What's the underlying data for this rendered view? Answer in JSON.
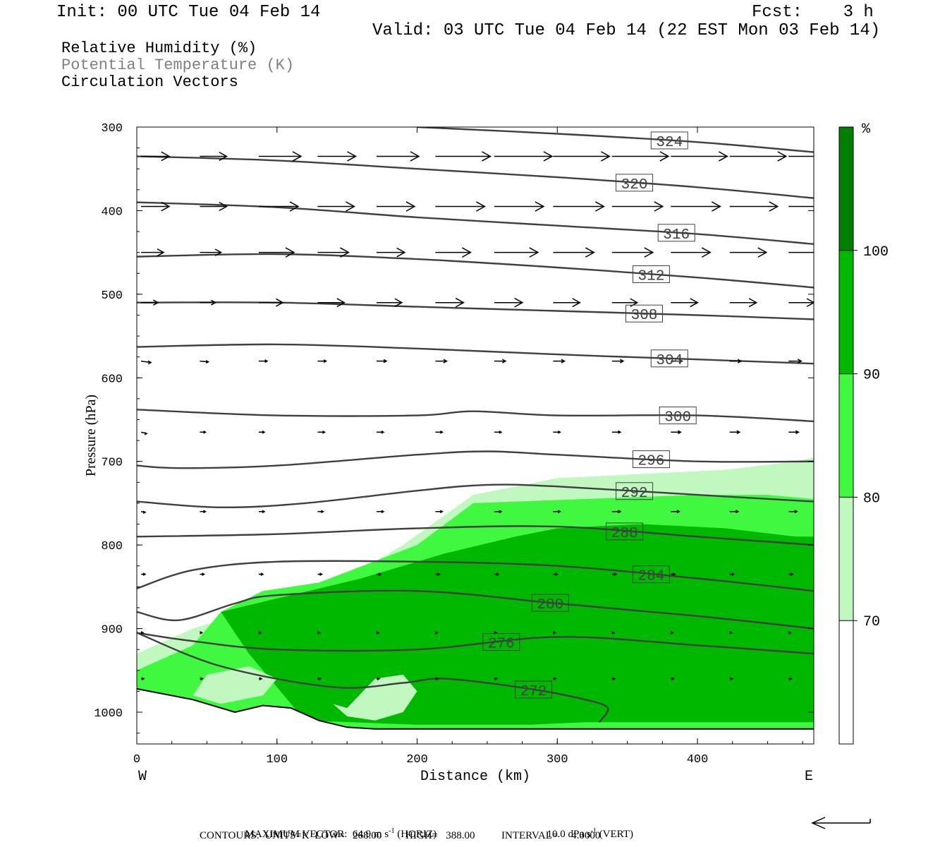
{
  "header": {
    "init": "Init: 00 UTC Tue 04 Feb 14",
    "fcst": "Fcst:    3 h",
    "valid": "Valid: 03 UTC Tue 04 Feb 14 (22 EST Mon 03 Feb 14)",
    "line1": "Relative Humidity (%)",
    "line2": "Potential Temperature (K)",
    "line3": "Circulation Vectors",
    "line2_color": "#808080"
  },
  "chart_data": {
    "type": "heatmap",
    "title": "",
    "xlabel": "Distance (km)",
    "ylabel": "Pressure (hPa)",
    "xlim": [
      0,
      483
    ],
    "ylim": [
      1038,
      300
    ],
    "x_ticks": [
      "0",
      "100",
      "200",
      "300",
      "400"
    ],
    "y_ticks": [
      "300",
      "400",
      "500",
      "600",
      "700",
      "800",
      "900",
      "1000"
    ],
    "x_ends": {
      "left": "W",
      "right": "E"
    },
    "colorbar": {
      "unit": "%",
      "levels": [
        "70",
        "80",
        "90",
        "100"
      ],
      "colors": [
        "#ffffff",
        "#c0f8c0",
        "#40f840",
        "#00b800",
        "#008000"
      ]
    },
    "rh_regions": [
      {
        "min": 70,
        "color": "#c0f8c0",
        "x": [
          0,
          40,
          80,
          110,
          150,
          190,
          240,
          300,
          360,
          420,
          470,
          483,
          483,
          0
        ],
        "p": [
          930,
          900,
          880,
          865,
          840,
          800,
          740,
          720,
          715,
          710,
          700,
          695,
          1025,
          1025
        ]
      },
      {
        "min": 80,
        "color": "#40f840",
        "x": [
          0,
          40,
          60,
          90,
          130,
          200,
          240,
          320,
          400,
          450,
          483,
          483,
          0
        ],
        "p": [
          950,
          920,
          880,
          855,
          845,
          800,
          750,
          745,
          740,
          740,
          745,
          1025,
          1025
        ]
      },
      {
        "min": 90,
        "color": "#00b800",
        "x": [
          60,
          110,
          160,
          220,
          270,
          300,
          360,
          420,
          470,
          483,
          483,
          440,
          380,
          320,
          280,
          250,
          200,
          120,
          80
        ],
        "p": [
          880,
          860,
          840,
          810,
          790,
          780,
          775,
          780,
          790,
          790,
          1012,
          1012,
          1012,
          1012,
          1015,
          1015,
          1015,
          1010,
          930
        ]
      }
    ],
    "rh_holes": [
      {
        "min": 70,
        "x": [
          150,
          170,
          190,
          200,
          190,
          170,
          150,
          140
        ],
        "p": [
          995,
          960,
          955,
          975,
          1000,
          1010,
          1005,
          990
        ]
      },
      {
        "min": 70,
        "x": [
          50,
          80,
          100,
          90,
          60,
          40
        ],
        "p": [
          955,
          945,
          960,
          980,
          990,
          980
        ]
      }
    ],
    "theta_contours": [
      {
        "value": "324",
        "label_x": 380,
        "x": [
          200,
          300,
          400,
          483
        ],
        "p": [
          300,
          308,
          318,
          330
        ]
      },
      {
        "value": "320",
        "label_x": 355,
        "x": [
          0,
          100,
          200,
          300,
          400,
          483
        ],
        "p": [
          335,
          340,
          350,
          360,
          372,
          385
        ]
      },
      {
        "value": "316",
        "label_x": 385,
        "x": [
          0,
          100,
          200,
          300,
          400,
          483
        ],
        "p": [
          390,
          396,
          408,
          418,
          428,
          440
        ]
      },
      {
        "value": "312",
        "label_x": 367,
        "x": [
          0,
          100,
          200,
          300,
          400,
          483
        ],
        "p": [
          455,
          452,
          458,
          468,
          480,
          492
        ]
      },
      {
        "value": "308",
        "label_x": 362,
        "x": [
          0,
          100,
          200,
          300,
          400,
          483
        ],
        "p": [
          510,
          510,
          515,
          520,
          525,
          530
        ]
      },
      {
        "value": "304",
        "label_x": 380,
        "x": [
          0,
          100,
          200,
          300,
          400,
          483
        ],
        "p": [
          563,
          560,
          565,
          572,
          578,
          583
        ]
      },
      {
        "value": "300",
        "label_x": 386,
        "x": [
          0,
          100,
          200,
          240,
          300,
          400,
          483
        ],
        "p": [
          638,
          645,
          645,
          640,
          645,
          645,
          652
        ]
      },
      {
        "value": "296",
        "label_x": 367,
        "x": [
          0,
          30,
          100,
          200,
          250,
          300,
          400,
          483
        ],
        "p": [
          705,
          708,
          705,
          692,
          688,
          692,
          700,
          700
        ]
      },
      {
        "value": "292",
        "label_x": 355,
        "x": [
          0,
          60,
          120,
          200,
          250,
          300,
          400,
          483
        ],
        "p": [
          748,
          755,
          750,
          735,
          728,
          730,
          740,
          748
        ]
      },
      {
        "value": "288",
        "label_x": 348,
        "x": [
          0,
          100,
          200,
          300,
          400,
          483
        ],
        "p": [
          790,
          787,
          780,
          778,
          790,
          800
        ]
      },
      {
        "value": "284",
        "label_x": 367,
        "x": [
          0,
          40,
          100,
          200,
          300,
          400,
          483
        ],
        "p": [
          852,
          830,
          820,
          820,
          825,
          840,
          855
        ]
      },
      {
        "value": "280",
        "label_x": 295,
        "x": [
          0,
          30,
          70,
          100,
          200,
          300,
          400,
          483
        ],
        "p": [
          880,
          890,
          870,
          860,
          855,
          870,
          885,
          900
        ]
      },
      {
        "value": "276",
        "label_x": 260,
        "x": [
          0,
          40,
          100,
          200,
          300,
          400,
          483
        ],
        "p": [
          905,
          915,
          925,
          925,
          910,
          920,
          930
        ]
      },
      {
        "value": "272",
        "label_x": 283,
        "x": [
          0,
          60,
          140,
          190,
          220,
          280,
          320,
          336,
          330
        ],
        "p": [
          905,
          945,
          970,
          965,
          960,
          972,
          985,
          995,
          1012
        ]
      }
    ],
    "ground": {
      "x": [
        0,
        40,
        70,
        90,
        110,
        130,
        150,
        170,
        200,
        300,
        400,
        483
      ],
      "p": [
        972,
        985,
        1000,
        992,
        995,
        1010,
        1018,
        1020,
        1020,
        1020,
        1020,
        1020
      ]
    },
    "vectors": {
      "x": [
        0,
        42,
        84,
        126,
        168,
        210,
        252,
        294,
        336,
        378,
        420,
        462
      ],
      "rows": [
        {
          "p": 335,
          "u": [
            40,
            38,
            60,
            54,
            60,
            78,
            82,
            80,
            80,
            80,
            80,
            80
          ],
          "w": [
            0,
            0,
            0,
            0,
            0,
            0,
            0,
            0,
            0,
            0,
            0,
            0
          ]
        },
        {
          "p": 395,
          "u": [
            40,
            38,
            56,
            52,
            54,
            70,
            70,
            72,
            72,
            70,
            68,
            62
          ],
          "w": [
            0,
            0,
            0,
            0,
            0,
            0,
            0,
            0,
            0,
            0,
            0,
            0
          ]
        },
        {
          "p": 450,
          "u": [
            32,
            30,
            50,
            44,
            40,
            50,
            62,
            58,
            58,
            56,
            52,
            48
          ],
          "w": [
            0,
            0,
            0,
            0,
            0,
            0,
            0,
            0,
            0,
            0,
            0,
            0
          ]
        },
        {
          "p": 510,
          "u": [
            24,
            22,
            34,
            38,
            36,
            40,
            40,
            38,
            36,
            38,
            38,
            36
          ],
          "w": [
            0,
            0,
            0,
            0,
            0,
            0,
            0,
            0,
            0,
            0,
            0,
            0
          ]
        },
        {
          "p": 580,
          "u": [
            14,
            12,
            12,
            12,
            14,
            16,
            16,
            16,
            16,
            16,
            16,
            18
          ],
          "w": [
            -2,
            -1,
            0,
            0,
            0,
            0,
            0,
            0,
            0,
            0,
            0,
            0
          ]
        },
        {
          "p": 665,
          "u": [
            8,
            8,
            8,
            10,
            10,
            10,
            10,
            10,
            12,
            14,
            14,
            14
          ],
          "w": [
            -2,
            0,
            0,
            0,
            0,
            0,
            0,
            0,
            0,
            0,
            0,
            0
          ]
        },
        {
          "p": 760,
          "u": [
            6,
            8,
            8,
            8,
            10,
            10,
            10,
            10,
            12,
            12,
            12,
            12
          ],
          "w": [
            -1,
            0,
            0,
            0,
            0,
            0,
            0,
            0,
            0,
            0,
            0,
            0
          ]
        },
        {
          "p": 835,
          "u": [
            6,
            6,
            6,
            6,
            6,
            6,
            6,
            6,
            6,
            6,
            6,
            6
          ],
          "w": [
            0,
            0,
            0,
            0,
            0,
            0,
            0,
            0,
            0,
            0,
            0,
            0
          ]
        },
        {
          "p": 905,
          "u": [
            3,
            3,
            3,
            3,
            3,
            3,
            3,
            3,
            3,
            3,
            3,
            3
          ],
          "w": [
            0,
            0,
            0,
            0,
            0,
            0,
            0,
            0,
            0,
            0,
            0,
            0
          ]
        },
        {
          "p": 960,
          "u": [
            4,
            4,
            4,
            4,
            4,
            4,
            4,
            4,
            4,
            4,
            4,
            4
          ],
          "w": [
            0,
            0,
            0,
            0,
            0,
            0,
            0,
            0,
            0,
            0,
            0,
            0
          ]
        }
      ]
    }
  },
  "footer": {
    "max_vector": "MAXIMUM VECTOR:  64.9 m s",
    "max_vector_exp": "-1",
    "horiz": " (HORIZ)",
    "vert_val": "10.0 dPa s",
    "vert_exp": "-1",
    "vert": " (VERT)",
    "contours": "CONTOURS:  UNITS=K  LOW=   268.00         HIGH=   388.00          INTERVAL=     4.0000"
  }
}
